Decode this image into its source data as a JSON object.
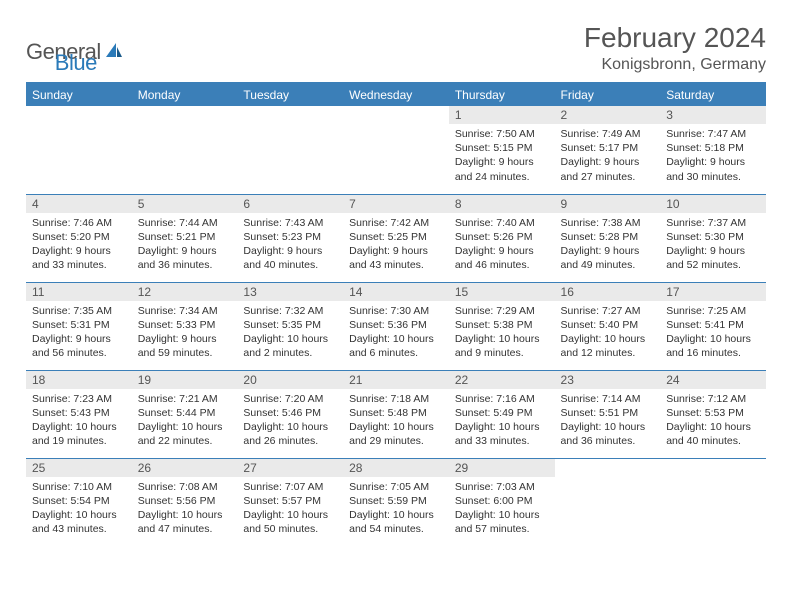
{
  "logo": {
    "text1": "General",
    "text2": "Blue"
  },
  "title": "February 2024",
  "location": "Konigsbronn, Germany",
  "colors": {
    "accent": "#3b7fb8",
    "header_bg": "#3b7fb8",
    "header_text": "#ffffff",
    "daynum_bg": "#eaeaea",
    "text": "#333333",
    "logo_gray": "#555555",
    "logo_blue": "#2a7ab9",
    "background": "#ffffff"
  },
  "day_headers": [
    "Sunday",
    "Monday",
    "Tuesday",
    "Wednesday",
    "Thursday",
    "Friday",
    "Saturday"
  ],
  "weeks": [
    [
      null,
      null,
      null,
      null,
      {
        "n": "1",
        "sr": "Sunrise: 7:50 AM",
        "ss": "Sunset: 5:15 PM",
        "d1": "Daylight: 9 hours",
        "d2": "and 24 minutes."
      },
      {
        "n": "2",
        "sr": "Sunrise: 7:49 AM",
        "ss": "Sunset: 5:17 PM",
        "d1": "Daylight: 9 hours",
        "d2": "and 27 minutes."
      },
      {
        "n": "3",
        "sr": "Sunrise: 7:47 AM",
        "ss": "Sunset: 5:18 PM",
        "d1": "Daylight: 9 hours",
        "d2": "and 30 minutes."
      }
    ],
    [
      {
        "n": "4",
        "sr": "Sunrise: 7:46 AM",
        "ss": "Sunset: 5:20 PM",
        "d1": "Daylight: 9 hours",
        "d2": "and 33 minutes."
      },
      {
        "n": "5",
        "sr": "Sunrise: 7:44 AM",
        "ss": "Sunset: 5:21 PM",
        "d1": "Daylight: 9 hours",
        "d2": "and 36 minutes."
      },
      {
        "n": "6",
        "sr": "Sunrise: 7:43 AM",
        "ss": "Sunset: 5:23 PM",
        "d1": "Daylight: 9 hours",
        "d2": "and 40 minutes."
      },
      {
        "n": "7",
        "sr": "Sunrise: 7:42 AM",
        "ss": "Sunset: 5:25 PM",
        "d1": "Daylight: 9 hours",
        "d2": "and 43 minutes."
      },
      {
        "n": "8",
        "sr": "Sunrise: 7:40 AM",
        "ss": "Sunset: 5:26 PM",
        "d1": "Daylight: 9 hours",
        "d2": "and 46 minutes."
      },
      {
        "n": "9",
        "sr": "Sunrise: 7:38 AM",
        "ss": "Sunset: 5:28 PM",
        "d1": "Daylight: 9 hours",
        "d2": "and 49 minutes."
      },
      {
        "n": "10",
        "sr": "Sunrise: 7:37 AM",
        "ss": "Sunset: 5:30 PM",
        "d1": "Daylight: 9 hours",
        "d2": "and 52 minutes."
      }
    ],
    [
      {
        "n": "11",
        "sr": "Sunrise: 7:35 AM",
        "ss": "Sunset: 5:31 PM",
        "d1": "Daylight: 9 hours",
        "d2": "and 56 minutes."
      },
      {
        "n": "12",
        "sr": "Sunrise: 7:34 AM",
        "ss": "Sunset: 5:33 PM",
        "d1": "Daylight: 9 hours",
        "d2": "and 59 minutes."
      },
      {
        "n": "13",
        "sr": "Sunrise: 7:32 AM",
        "ss": "Sunset: 5:35 PM",
        "d1": "Daylight: 10 hours",
        "d2": "and 2 minutes."
      },
      {
        "n": "14",
        "sr": "Sunrise: 7:30 AM",
        "ss": "Sunset: 5:36 PM",
        "d1": "Daylight: 10 hours",
        "d2": "and 6 minutes."
      },
      {
        "n": "15",
        "sr": "Sunrise: 7:29 AM",
        "ss": "Sunset: 5:38 PM",
        "d1": "Daylight: 10 hours",
        "d2": "and 9 minutes."
      },
      {
        "n": "16",
        "sr": "Sunrise: 7:27 AM",
        "ss": "Sunset: 5:40 PM",
        "d1": "Daylight: 10 hours",
        "d2": "and 12 minutes."
      },
      {
        "n": "17",
        "sr": "Sunrise: 7:25 AM",
        "ss": "Sunset: 5:41 PM",
        "d1": "Daylight: 10 hours",
        "d2": "and 16 minutes."
      }
    ],
    [
      {
        "n": "18",
        "sr": "Sunrise: 7:23 AM",
        "ss": "Sunset: 5:43 PM",
        "d1": "Daylight: 10 hours",
        "d2": "and 19 minutes."
      },
      {
        "n": "19",
        "sr": "Sunrise: 7:21 AM",
        "ss": "Sunset: 5:44 PM",
        "d1": "Daylight: 10 hours",
        "d2": "and 22 minutes."
      },
      {
        "n": "20",
        "sr": "Sunrise: 7:20 AM",
        "ss": "Sunset: 5:46 PM",
        "d1": "Daylight: 10 hours",
        "d2": "and 26 minutes."
      },
      {
        "n": "21",
        "sr": "Sunrise: 7:18 AM",
        "ss": "Sunset: 5:48 PM",
        "d1": "Daylight: 10 hours",
        "d2": "and 29 minutes."
      },
      {
        "n": "22",
        "sr": "Sunrise: 7:16 AM",
        "ss": "Sunset: 5:49 PM",
        "d1": "Daylight: 10 hours",
        "d2": "and 33 minutes."
      },
      {
        "n": "23",
        "sr": "Sunrise: 7:14 AM",
        "ss": "Sunset: 5:51 PM",
        "d1": "Daylight: 10 hours",
        "d2": "and 36 minutes."
      },
      {
        "n": "24",
        "sr": "Sunrise: 7:12 AM",
        "ss": "Sunset: 5:53 PM",
        "d1": "Daylight: 10 hours",
        "d2": "and 40 minutes."
      }
    ],
    [
      {
        "n": "25",
        "sr": "Sunrise: 7:10 AM",
        "ss": "Sunset: 5:54 PM",
        "d1": "Daylight: 10 hours",
        "d2": "and 43 minutes."
      },
      {
        "n": "26",
        "sr": "Sunrise: 7:08 AM",
        "ss": "Sunset: 5:56 PM",
        "d1": "Daylight: 10 hours",
        "d2": "and 47 minutes."
      },
      {
        "n": "27",
        "sr": "Sunrise: 7:07 AM",
        "ss": "Sunset: 5:57 PM",
        "d1": "Daylight: 10 hours",
        "d2": "and 50 minutes."
      },
      {
        "n": "28",
        "sr": "Sunrise: 7:05 AM",
        "ss": "Sunset: 5:59 PM",
        "d1": "Daylight: 10 hours",
        "d2": "and 54 minutes."
      },
      {
        "n": "29",
        "sr": "Sunrise: 7:03 AM",
        "ss": "Sunset: 6:00 PM",
        "d1": "Daylight: 10 hours",
        "d2": "and 57 minutes."
      },
      null,
      null
    ]
  ]
}
